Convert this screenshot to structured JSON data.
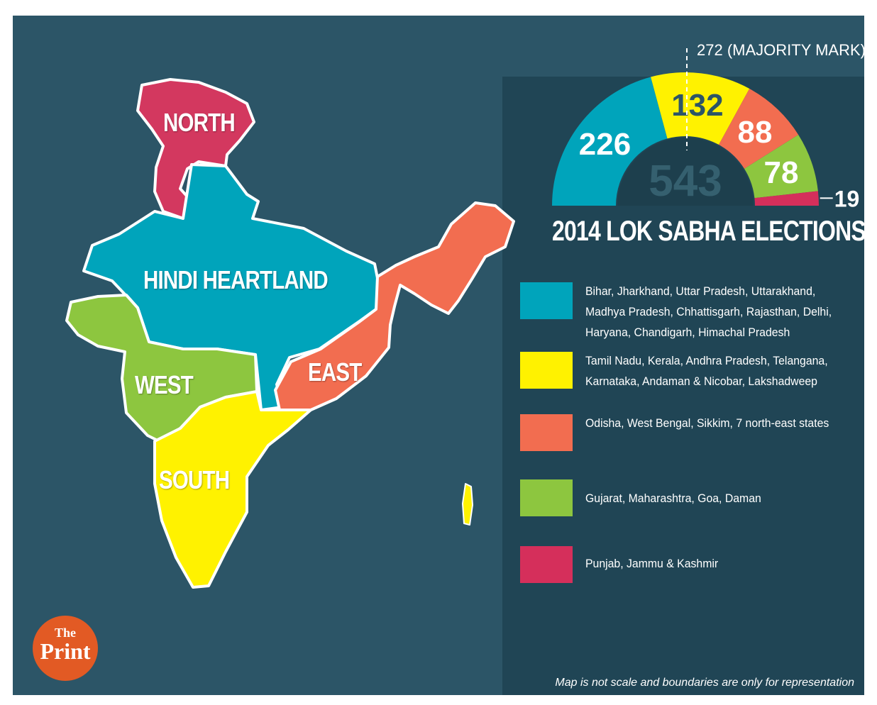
{
  "regions": {
    "north": "NORTH",
    "hindi": "HINDI HEARTLAND",
    "west": "WEST",
    "east": "EAST",
    "south": "SOUTH"
  },
  "chart_data": {
    "type": "pie",
    "subtype": "semicircle",
    "title": "2014 LOK SABHA ELECTIONS",
    "total": 543,
    "total_label": "543",
    "majority_label": "272 (MAJORITY MARK)",
    "majority_value": 272,
    "series": [
      {
        "name": "Bihar, Jharkhand, Uttar Pradesh, Uttarakhand, Madhya Pradesh, Chhattisgarh, Rajasthan, Delhi, Haryana, Chandigarh, Himachal Pradesh",
        "value": 226,
        "label": "226",
        "color": "#00a4bb"
      },
      {
        "name": "Tamil Nadu, Kerala, Andhra Pradesh, Telangana, Karnataka, Andaman & Nicobar, Lakshadweep",
        "value": 132,
        "label": "132",
        "color": "#fff200"
      },
      {
        "name": "Odisha, West Bengal, Sikkim, 7 north-east states",
        "value": 88,
        "label": "88",
        "color": "#f26d50"
      },
      {
        "name": "Gujarat, Maharashtra, Goa, Daman",
        "value": 78,
        "label": "78",
        "color": "#8dc63f"
      },
      {
        "name": "Punjab, Jammu & Kashmir",
        "value": 19,
        "label": "19",
        "color": "#d52f5b"
      }
    ]
  },
  "footnote": "Map is not scale and boundaries are only for representation",
  "logo": {
    "line1": "The",
    "line2": "Print"
  },
  "colors": {
    "background": "#2c5567",
    "panel": "#1d3f4d"
  }
}
